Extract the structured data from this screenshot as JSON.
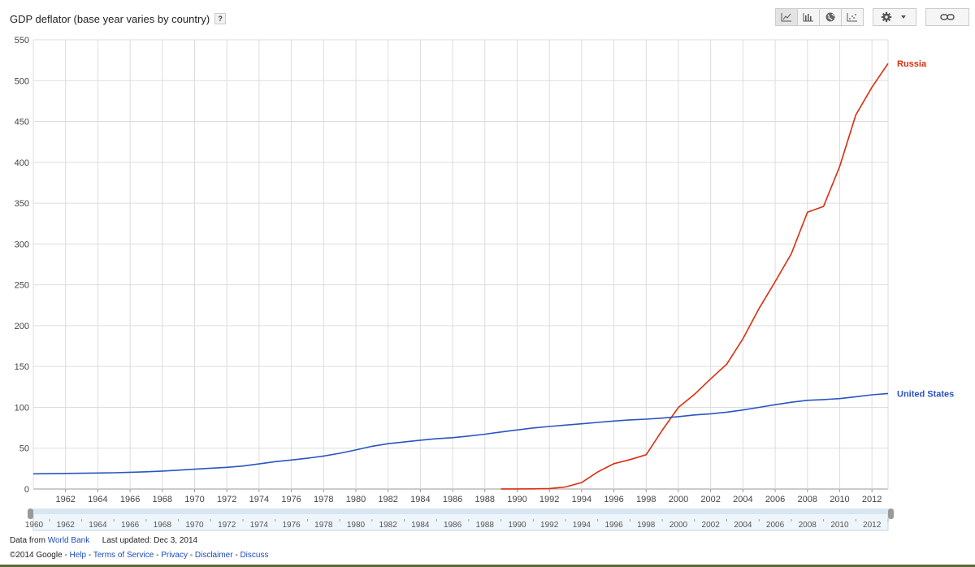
{
  "header": {
    "title": "GDP deflator (base year varies by country)",
    "help_label": "?"
  },
  "toolbar": {
    "buttons": [
      {
        "icon": "line-chart-icon",
        "active": true
      },
      {
        "icon": "bar-chart-icon",
        "active": false
      },
      {
        "icon": "globe-map-icon",
        "active": false
      },
      {
        "icon": "scatter-chart-icon",
        "active": false
      }
    ],
    "settings_icon": "gear-icon",
    "dropdown_icon": "caret-down-icon",
    "link_icon": "link-icon"
  },
  "chart_data": {
    "type": "line",
    "title": "GDP deflator (base year varies by country)",
    "xlim": [
      1960,
      2013
    ],
    "ylim": [
      0,
      550
    ],
    "y_ticks": [
      0,
      50,
      100,
      150,
      200,
      250,
      300,
      350,
      400,
      450,
      500,
      550
    ],
    "x_ticks": [
      1962,
      1964,
      1966,
      1968,
      1970,
      1972,
      1974,
      1976,
      1978,
      1980,
      1982,
      1984,
      1986,
      1988,
      1990,
      1992,
      1994,
      1996,
      1998,
      2000,
      2002,
      2004,
      2006,
      2008,
      2010,
      2012
    ],
    "grid": true,
    "series": [
      {
        "name": "Russia",
        "color": "#dc2d0e",
        "x": [
          1989,
          1990,
          1991,
          1992,
          1993,
          1994,
          1995,
          1996,
          1997,
          1998,
          1999,
          2000,
          2001,
          2002,
          2003,
          2004,
          2005,
          2006,
          2007,
          2008,
          2009,
          2010,
          2011,
          2012,
          2013
        ],
        "values": [
          0.1,
          0.1,
          0.2,
          0.6,
          2.5,
          8,
          21,
          31,
          36,
          42,
          72,
          100,
          116,
          135,
          153,
          184,
          221,
          254,
          288,
          339,
          346,
          395,
          458,
          492,
          521
        ]
      },
      {
        "name": "United States",
        "color": "#2a55c0",
        "x": [
          1960,
          1961,
          1962,
          1963,
          1964,
          1965,
          1966,
          1967,
          1968,
          1969,
          1970,
          1971,
          1972,
          1973,
          1974,
          1975,
          1976,
          1977,
          1978,
          1979,
          1980,
          1981,
          1982,
          1983,
          1984,
          1985,
          1986,
          1987,
          1988,
          1989,
          1990,
          1991,
          1992,
          1993,
          1994,
          1995,
          1996,
          1997,
          1998,
          1999,
          2000,
          2001,
          2002,
          2003,
          2004,
          2005,
          2006,
          2007,
          2008,
          2009,
          2010,
          2011,
          2012,
          2013
        ],
        "values": [
          18.6,
          18.8,
          19.1,
          19.3,
          19.6,
          19.9,
          20.5,
          21.1,
          22.0,
          23.1,
          24.3,
          25.5,
          26.6,
          28.1,
          30.7,
          33.5,
          35.5,
          37.7,
          40.4,
          43.8,
          47.8,
          52.3,
          55.5,
          57.6,
          59.8,
          61.6,
          62.9,
          64.8,
          67.1,
          69.8,
          72.3,
          74.8,
          76.6,
          78.3,
          79.9,
          81.6,
          83.2,
          84.6,
          85.5,
          86.8,
          88.6,
          90.7,
          92.1,
          94.1,
          96.8,
          100.0,
          103.2,
          106.2,
          108.6,
          109.5,
          110.7,
          113.0,
          115.4,
          117.0
        ]
      }
    ]
  },
  "navigator": {
    "labels": [
      "1960",
      "1962",
      "1964",
      "1966",
      "1968",
      "1970",
      "1972",
      "1974",
      "1976",
      "1978",
      "1980",
      "1982",
      "1984",
      "1986",
      "1988",
      "1990",
      "1992",
      "1994",
      "1996",
      "1998",
      "2000",
      "2002",
      "2004",
      "2006",
      "2008",
      "2010",
      "2012"
    ]
  },
  "footer": {
    "data_from": "Data from",
    "source_link": "World Bank",
    "last_updated": "Last updated: Dec 3, 2014",
    "copyright": "©2014 Google -",
    "links": [
      "Help",
      "Terms of Service",
      "Privacy",
      "Disclaimer",
      "Discuss"
    ],
    "separator": " - "
  }
}
